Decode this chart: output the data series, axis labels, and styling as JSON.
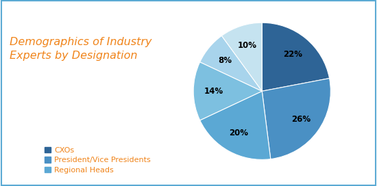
{
  "title": "Demographics of Industry\nExperts by Designation",
  "title_color": "#F0841A",
  "slices": [
    22,
    26,
    20,
    14,
    8,
    10
  ],
  "labels": [
    "22%",
    "26%",
    "20%",
    "14%",
    "8%",
    "10%"
  ],
  "colors": [
    "#2E6496",
    "#4A90C4",
    "#5BA8D4",
    "#7DC0E0",
    "#A8D4EC",
    "#C5E3F0"
  ],
  "legend_items": [
    {
      "label": "CXOs",
      "color": "#2E6496"
    },
    {
      "label": "President/Vice Presidents",
      "color": "#4A90C4"
    },
    {
      "label": "Regional Heads",
      "color": "#5BA8D4"
    }
  ],
  "startangle": 90,
  "background_color": "#FFFFFF",
  "border_color": "#5BAAD4"
}
